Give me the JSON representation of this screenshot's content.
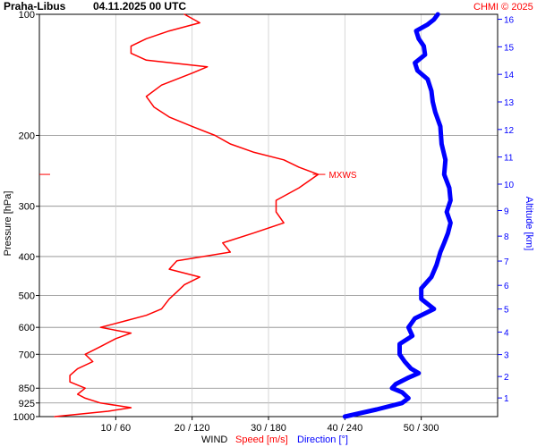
{
  "header": {
    "station": "Praha-Libus",
    "datetime": "04.11.2025 00 UTC",
    "credit": "CHMI © 2025"
  },
  "colors": {
    "speed": "#ff0000",
    "direction": "#0000ff",
    "grid_major": "#888888",
    "grid_minor": "#cccccc",
    "text": "#000000"
  },
  "chart_data": {
    "type": "line",
    "title": "Praha-Libus   04.11.2025 00 UTC",
    "y_axis": {
      "label": "Pressure [hPa]",
      "ticks": [
        100,
        200,
        300,
        400,
        500,
        600,
        700,
        850,
        925,
        1000
      ],
      "range": [
        100,
        1000
      ]
    },
    "y2_axis": {
      "label": "Altitude [km]",
      "ticks": [
        1,
        2,
        3,
        4,
        5,
        6,
        7,
        8,
        9,
        10,
        11,
        12,
        13,
        14,
        15,
        16
      ]
    },
    "x_axis": {
      "label": "WIND",
      "speed_label": "Speed [m/s]",
      "direction_label": "Direction [°]",
      "ticks": [
        "10 / 60",
        "20 / 120",
        "30 / 180",
        "40 / 240",
        "50 / 300"
      ],
      "speed_range": [
        0,
        60
      ],
      "direction_range": [
        0,
        360
      ]
    },
    "annotation": {
      "label": "MXWS",
      "pressure": 250,
      "speed": 36.5
    },
    "series": [
      {
        "name": "Speed [m/s]",
        "color": "#ff0000",
        "points": [
          [
            1000,
            2
          ],
          [
            970,
            9
          ],
          [
            950,
            12
          ],
          [
            925,
            8
          ],
          [
            900,
            6
          ],
          [
            880,
            5
          ],
          [
            850,
            6
          ],
          [
            820,
            4
          ],
          [
            790,
            4
          ],
          [
            760,
            5
          ],
          [
            730,
            7
          ],
          [
            700,
            6
          ],
          [
            670,
            8
          ],
          [
            640,
            10
          ],
          [
            620,
            12
          ],
          [
            600,
            8
          ],
          [
            580,
            11
          ],
          [
            560,
            14
          ],
          [
            540,
            16
          ],
          [
            510,
            17
          ],
          [
            490,
            18
          ],
          [
            470,
            19
          ],
          [
            450,
            21
          ],
          [
            430,
            17
          ],
          [
            410,
            18
          ],
          [
            390,
            25
          ],
          [
            370,
            24
          ],
          [
            350,
            28
          ],
          [
            330,
            32
          ],
          [
            310,
            31
          ],
          [
            290,
            31
          ],
          [
            270,
            34
          ],
          [
            250,
            36.5
          ],
          [
            240,
            34
          ],
          [
            230,
            32
          ],
          [
            220,
            28
          ],
          [
            210,
            25
          ],
          [
            200,
            23
          ],
          [
            190,
            20
          ],
          [
            180,
            17
          ],
          [
            170,
            15
          ],
          [
            160,
            14
          ],
          [
            150,
            16
          ],
          [
            140,
            20
          ],
          [
            135,
            22
          ],
          [
            130,
            14
          ],
          [
            125,
            12
          ],
          [
            120,
            12
          ],
          [
            115,
            14
          ],
          [
            110,
            17
          ],
          [
            105,
            21
          ],
          [
            100,
            19
          ]
        ]
      },
      {
        "name": "Direction [°]",
        "color": "#0000ff",
        "points": [
          [
            1000,
            240
          ],
          [
            960,
            265
          ],
          [
            925,
            285
          ],
          [
            900,
            290
          ],
          [
            870,
            285
          ],
          [
            850,
            277
          ],
          [
            830,
            280
          ],
          [
            800,
            290
          ],
          [
            780,
            298
          ],
          [
            760,
            292
          ],
          [
            730,
            287
          ],
          [
            700,
            283
          ],
          [
            660,
            283
          ],
          [
            630,
            293
          ],
          [
            600,
            290
          ],
          [
            570,
            295
          ],
          [
            540,
            310
          ],
          [
            510,
            300
          ],
          [
            480,
            300
          ],
          [
            450,
            308
          ],
          [
            420,
            312
          ],
          [
            390,
            315
          ],
          [
            370,
            318
          ],
          [
            350,
            321
          ],
          [
            330,
            323
          ],
          [
            310,
            320
          ],
          [
            290,
            323
          ],
          [
            270,
            322
          ],
          [
            250,
            318
          ],
          [
            230,
            319
          ],
          [
            210,
            316
          ],
          [
            190,
            315
          ],
          [
            175,
            311
          ],
          [
            165,
            309
          ],
          [
            155,
            308
          ],
          [
            145,
            305
          ],
          [
            138,
            297
          ],
          [
            132,
            295
          ],
          [
            126,
            303
          ],
          [
            120,
            302
          ],
          [
            115,
            298
          ],
          [
            110,
            296
          ],
          [
            106,
            305
          ],
          [
            103,
            310
          ],
          [
            100,
            313
          ]
        ]
      }
    ]
  }
}
